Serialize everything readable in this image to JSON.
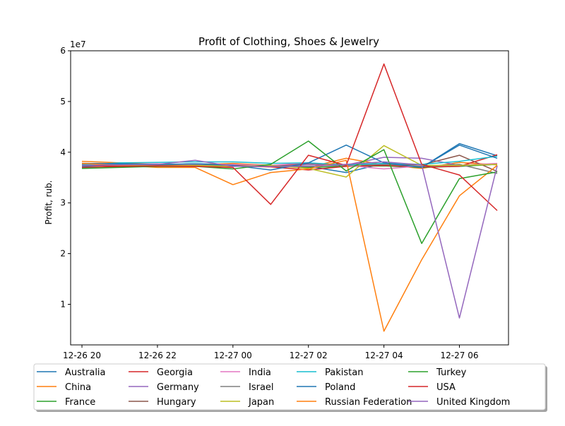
{
  "chart_data": {
    "type": "line",
    "title": "Profit of Clothing, Shoes & Jewelry",
    "xlabel": "",
    "ylabel": "Profit, rub.",
    "y_multiplier_label": "1e7",
    "y_scale": 10000000,
    "ylim": [
      0.2,
      6.0
    ],
    "y_ticks": [
      1,
      2,
      3,
      4,
      5,
      6
    ],
    "x_times": [
      "12-26 20",
      "12-26 21",
      "12-26 22",
      "12-26 23",
      "12-27 00",
      "12-27 01",
      "12-27 02",
      "12-27 03",
      "12-27 04",
      "12-27 05",
      "12-27 06",
      "12-27 07"
    ],
    "x_tick_labels": [
      {
        "label": "12-26 20",
        "index": 0
      },
      {
        "label": "12-26 22",
        "index": 2
      },
      {
        "label": "12-27 00",
        "index": 4
      },
      {
        "label": "12-27 02",
        "index": 6
      },
      {
        "label": "12-27 04",
        "index": 8
      },
      {
        "label": "12-27 06",
        "index": 10
      }
    ],
    "xlim_index": [
      -0.3,
      11.3
    ],
    "legend_position": "bottom-center",
    "series": [
      {
        "name": "Australia",
        "color": "#1f77b4",
        "values": [
          3.72,
          3.74,
          3.75,
          3.77,
          3.76,
          3.74,
          3.72,
          3.6,
          3.78,
          3.7,
          4.17,
          3.93
        ]
      },
      {
        "name": "China",
        "color": "#ff7f0e",
        "values": [
          3.82,
          3.79,
          3.76,
          3.75,
          3.78,
          3.74,
          3.7,
          3.88,
          3.75,
          3.68,
          3.8,
          3.75
        ]
      },
      {
        "name": "France",
        "color": "#2ca02c",
        "values": [
          3.68,
          3.72,
          3.74,
          3.76,
          3.75,
          3.72,
          3.7,
          3.72,
          3.73,
          3.7,
          3.72,
          3.76
        ]
      },
      {
        "name": "Georgia",
        "color": "#d62728",
        "values": [
          3.7,
          3.71,
          3.72,
          3.74,
          3.73,
          3.71,
          3.65,
          3.72,
          3.74,
          3.71,
          3.72,
          3.95
        ]
      },
      {
        "name": "Germany",
        "color": "#9467bd",
        "values": [
          3.74,
          3.75,
          3.75,
          3.75,
          3.74,
          3.72,
          3.76,
          3.75,
          3.9,
          3.88,
          3.74,
          3.77
        ]
      },
      {
        "name": "Hungary",
        "color": "#8c564b",
        "values": [
          3.78,
          3.77,
          3.76,
          3.74,
          3.74,
          3.73,
          3.78,
          3.74,
          3.76,
          3.75,
          3.94,
          3.62
        ]
      },
      {
        "name": "India",
        "color": "#e377c2",
        "values": [
          3.75,
          3.76,
          3.77,
          3.74,
          3.76,
          3.74,
          3.79,
          3.74,
          3.67,
          3.73,
          3.74,
          3.78
        ]
      },
      {
        "name": "Israel",
        "color": "#7f7f7f",
        "values": [
          3.76,
          3.75,
          3.75,
          3.77,
          3.72,
          3.73,
          3.73,
          3.74,
          3.76,
          3.72,
          3.76,
          3.58
        ]
      },
      {
        "name": "Japan",
        "color": "#bcbd22",
        "values": [
          3.74,
          3.74,
          3.73,
          3.74,
          3.72,
          3.74,
          3.68,
          3.51,
          4.13,
          3.74,
          3.74,
          3.76
        ]
      },
      {
        "name": "Pakistan",
        "color": "#17becf",
        "values": [
          3.75,
          3.79,
          3.8,
          3.81,
          3.81,
          3.78,
          3.79,
          3.75,
          3.78,
          3.76,
          3.82,
          3.92
        ]
      },
      {
        "name": "Poland",
        "color": "#1f77b4",
        "values": [
          3.78,
          3.77,
          3.76,
          3.77,
          3.74,
          3.65,
          3.79,
          4.14,
          3.79,
          3.7,
          4.14,
          3.88
        ]
      },
      {
        "name": "Russian Federation",
        "color": "#ff7f0e",
        "values": [
          3.78,
          3.74,
          3.7,
          3.7,
          3.36,
          3.6,
          3.67,
          3.84,
          0.47,
          1.88,
          3.14,
          3.74
        ]
      },
      {
        "name": "Turkey",
        "color": "#2ca02c",
        "values": [
          3.68,
          3.7,
          3.72,
          3.72,
          3.67,
          3.76,
          4.22,
          3.63,
          4.05,
          2.2,
          3.48,
          3.61
        ]
      },
      {
        "name": "USA",
        "color": "#d62728",
        "values": [
          3.74,
          3.72,
          3.73,
          3.72,
          3.7,
          2.97,
          3.94,
          3.74,
          5.74,
          3.76,
          3.55,
          2.85
        ]
      },
      {
        "name": "United Kingdom",
        "color": "#9467bd",
        "values": [
          3.74,
          3.75,
          3.76,
          3.84,
          3.72,
          3.72,
          3.72,
          3.76,
          3.81,
          3.75,
          0.73,
          3.73
        ]
      }
    ]
  }
}
